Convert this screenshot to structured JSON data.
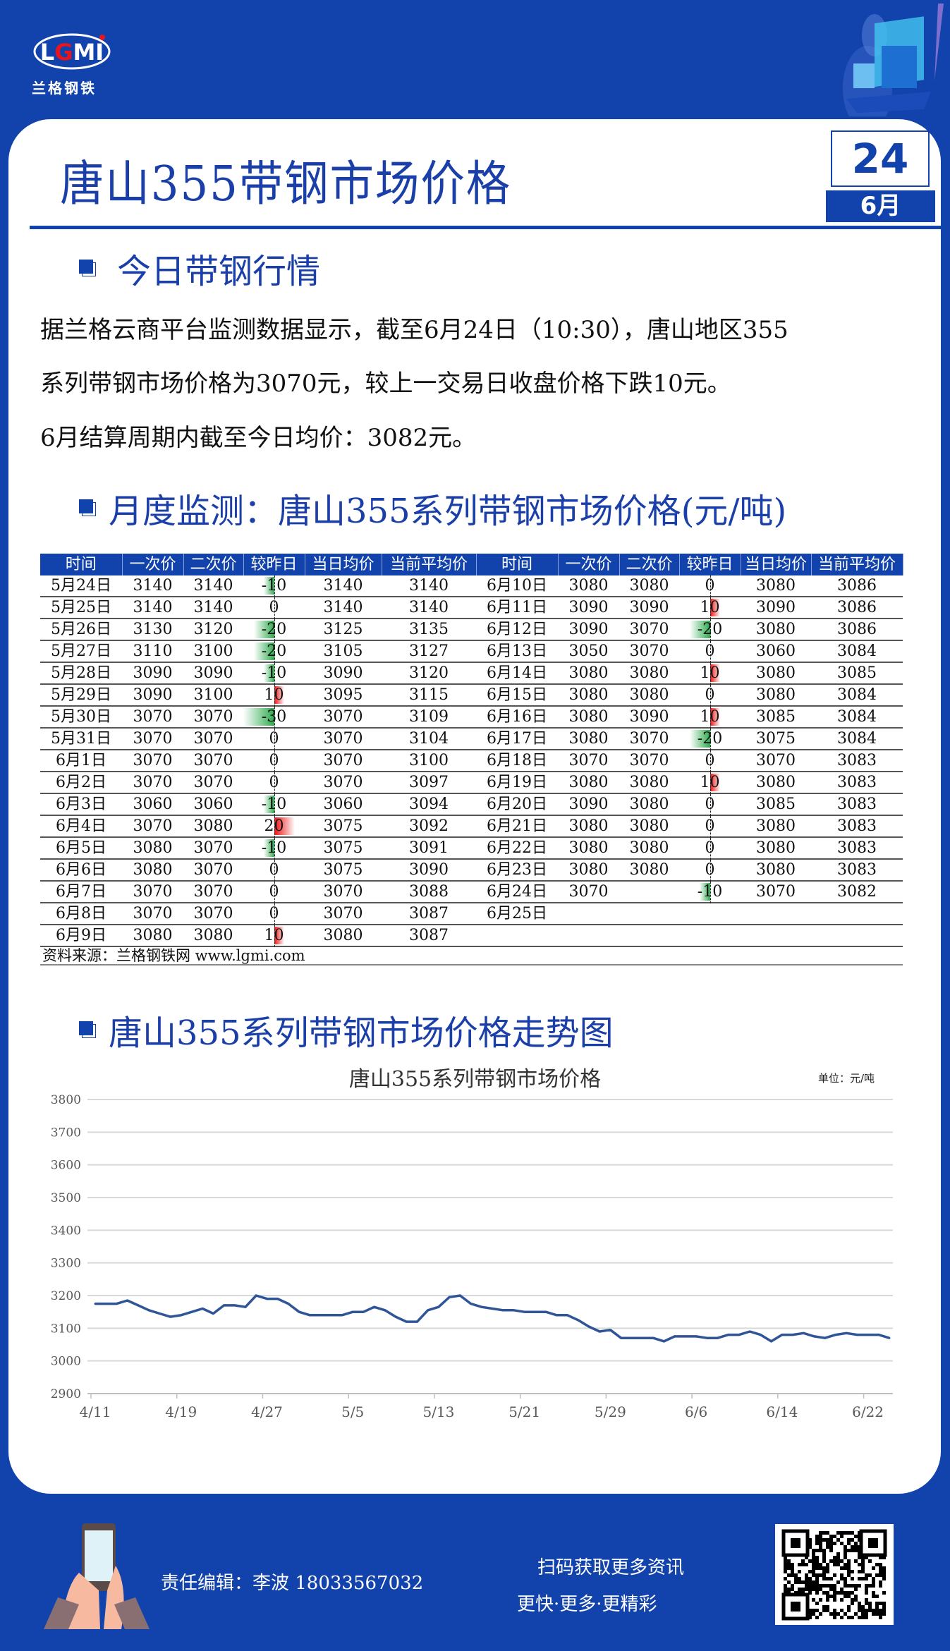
{
  "brand": {
    "logo_text": "LGMI",
    "logo_cn": "兰格钢铁"
  },
  "header": {
    "title": "唐山355带钢市场价格",
    "day": "24",
    "month": "6月"
  },
  "section1": {
    "title": "今日带钢行情",
    "lines": [
      "据兰格云商平台监测数据显示，截至6月24日（10:30），唐山地区355",
      "系列带钢市场价格为3070元，较上一交易日收盘价格下跌10元。",
      "6月结算周期内截至今日均价：3082元。"
    ]
  },
  "section2": {
    "title": "月度监测：唐山355系列带钢市场价格(元/吨)"
  },
  "table": {
    "headers": [
      "时间",
      "一次价",
      "二次价",
      "较昨日",
      "当日均价",
      "当前平均价"
    ],
    "left": [
      [
        "5月24日",
        "3140",
        "3140",
        "-10",
        "3140",
        "3140"
      ],
      [
        "5月25日",
        "3140",
        "3140",
        "0",
        "3140",
        "3140"
      ],
      [
        "5月26日",
        "3130",
        "3120",
        "-20",
        "3125",
        "3135"
      ],
      [
        "5月27日",
        "3110",
        "3100",
        "-20",
        "3105",
        "3127"
      ],
      [
        "5月28日",
        "3090",
        "3090",
        "-10",
        "3090",
        "3120"
      ],
      [
        "5月29日",
        "3090",
        "3100",
        "10",
        "3095",
        "3115"
      ],
      [
        "5月30日",
        "3070",
        "3070",
        "-30",
        "3070",
        "3109"
      ],
      [
        "5月31日",
        "3070",
        "3070",
        "0",
        "3070",
        "3104"
      ],
      [
        "6月1日",
        "3070",
        "3070",
        "0",
        "3070",
        "3100"
      ],
      [
        "6月2日",
        "3070",
        "3070",
        "0",
        "3070",
        "3097"
      ],
      [
        "6月3日",
        "3060",
        "3060",
        "-10",
        "3060",
        "3094"
      ],
      [
        "6月4日",
        "3070",
        "3080",
        "20",
        "3075",
        "3092"
      ],
      [
        "6月5日",
        "3080",
        "3070",
        "-10",
        "3075",
        "3091"
      ],
      [
        "6月6日",
        "3080",
        "3070",
        "0",
        "3075",
        "3090"
      ],
      [
        "6月7日",
        "3070",
        "3070",
        "0",
        "3070",
        "3088"
      ],
      [
        "6月8日",
        "3070",
        "3070",
        "0",
        "3070",
        "3087"
      ],
      [
        "6月9日",
        "3080",
        "3080",
        "10",
        "3080",
        "3087"
      ]
    ],
    "right": [
      [
        "6月10日",
        "3080",
        "3080",
        "0",
        "3080",
        "3086"
      ],
      [
        "6月11日",
        "3090",
        "3090",
        "10",
        "3090",
        "3086"
      ],
      [
        "6月12日",
        "3090",
        "3070",
        "-20",
        "3080",
        "3086"
      ],
      [
        "6月13日",
        "3050",
        "3070",
        "0",
        "3060",
        "3084"
      ],
      [
        "6月14日",
        "3080",
        "3080",
        "10",
        "3080",
        "3085"
      ],
      [
        "6月15日",
        "3080",
        "3080",
        "0",
        "3080",
        "3084"
      ],
      [
        "6月16日",
        "3080",
        "3090",
        "10",
        "3085",
        "3084"
      ],
      [
        "6月17日",
        "3080",
        "3070",
        "-20",
        "3075",
        "3084"
      ],
      [
        "6月18日",
        "3070",
        "3070",
        "0",
        "3070",
        "3083"
      ],
      [
        "6月19日",
        "3080",
        "3080",
        "10",
        "3080",
        "3083"
      ],
      [
        "6月20日",
        "3090",
        "3080",
        "0",
        "3085",
        "3083"
      ],
      [
        "6月21日",
        "3080",
        "3080",
        "0",
        "3080",
        "3083"
      ],
      [
        "6月22日",
        "3080",
        "3080",
        "0",
        "3080",
        "3083"
      ],
      [
        "6月23日",
        "3080",
        "3080",
        "0",
        "3080",
        "3083"
      ],
      [
        "6月24日",
        "3070",
        "",
        "-10",
        "3070",
        "3082"
      ],
      [
        "6月25日",
        "",
        "",
        "",
        "",
        ""
      ],
      [
        "",
        "",
        "",
        "",
        "",
        ""
      ]
    ],
    "source": "资料来源：兰格钢铁网 www.lgmi.com",
    "colors": {
      "down": "#2eaa4e",
      "up": "#ee1111",
      "header": "#1243ac"
    }
  },
  "section3": {
    "title": "唐山355系列带钢市场价格走势图"
  },
  "chart_data": {
    "type": "line",
    "title": "唐山355系列带钢市场价格",
    "unit": "单位：元/吨",
    "ylim": [
      2900,
      3800
    ],
    "yticks": [
      "3800",
      "3700",
      "3600",
      "3500",
      "3400",
      "3300",
      "3200",
      "3100",
      "3000",
      "2900"
    ],
    "xticks": [
      "4/11",
      "4/19",
      "4/27",
      "5/5",
      "5/13",
      "5/21",
      "5/29",
      "6/6",
      "6/14",
      "6/22"
    ],
    "grid": true,
    "color": "#2f5597",
    "x": [
      "4/11",
      "4/12",
      "4/13",
      "4/14",
      "4/15",
      "4/16",
      "4/17",
      "4/18",
      "4/19",
      "4/20",
      "4/21",
      "4/22",
      "4/23",
      "4/24",
      "4/25",
      "4/26",
      "4/27",
      "4/28",
      "4/29",
      "4/30",
      "5/1",
      "5/2",
      "5/3",
      "5/4",
      "5/5",
      "5/6",
      "5/7",
      "5/8",
      "5/9",
      "5/10",
      "5/11",
      "5/12",
      "5/13",
      "5/14",
      "5/15",
      "5/16",
      "5/17",
      "5/18",
      "5/19",
      "5/20",
      "5/21",
      "5/22",
      "5/23",
      "5/24",
      "5/25",
      "5/26",
      "5/27",
      "5/28",
      "5/29",
      "5/30",
      "5/31",
      "6/1",
      "6/2",
      "6/3",
      "6/4",
      "6/5",
      "6/6",
      "6/7",
      "6/8",
      "6/9",
      "6/10",
      "6/11",
      "6/12",
      "6/13",
      "6/14",
      "6/15",
      "6/16",
      "6/17",
      "6/18",
      "6/19",
      "6/20",
      "6/21",
      "6/22",
      "6/23",
      "6/24"
    ],
    "values": [
      3175,
      3175,
      3175,
      3185,
      3170,
      3155,
      3145,
      3135,
      3140,
      3150,
      3160,
      3145,
      3170,
      3170,
      3165,
      3200,
      3190,
      3190,
      3175,
      3150,
      3140,
      3140,
      3140,
      3140,
      3150,
      3150,
      3165,
      3155,
      3135,
      3120,
      3120,
      3155,
      3165,
      3195,
      3200,
      3175,
      3165,
      3160,
      3155,
      3155,
      3150,
      3150,
      3150,
      3140,
      3140,
      3125,
      3105,
      3090,
      3095,
      3070,
      3070,
      3070,
      3070,
      3060,
      3075,
      3075,
      3075,
      3070,
      3070,
      3080,
      3080,
      3090,
      3080,
      3060,
      3080,
      3080,
      3085,
      3075,
      3070,
      3080,
      3085,
      3080,
      3080,
      3080,
      3070
    ]
  },
  "footer": {
    "editor": "责任编辑：李波 18033567032",
    "scan": "扫码获取更多资讯",
    "slogan": "更快·更多·更精彩"
  },
  "colors": {
    "brand_blue": "#1243ac"
  }
}
